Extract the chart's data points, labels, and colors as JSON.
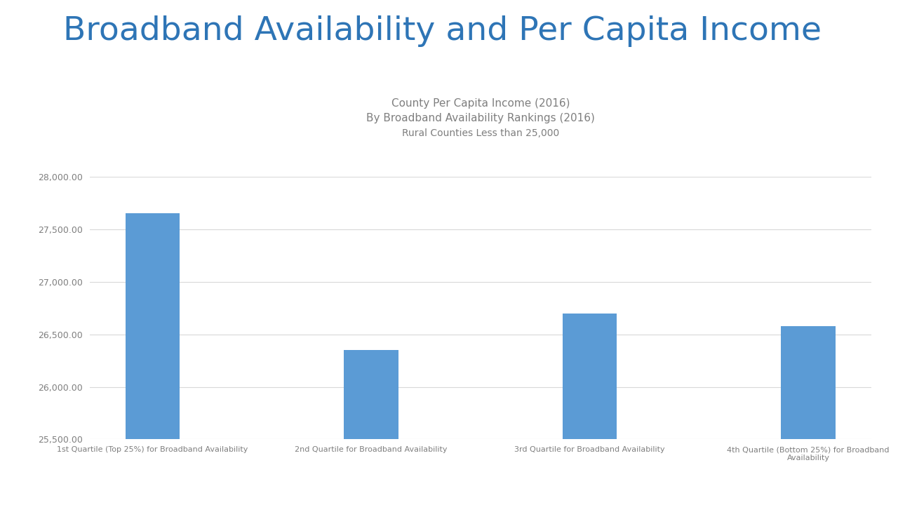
{
  "title": "Broadband Availability and Per Capita Income",
  "subtitle_line1": "County Per Capita Income (2016)",
  "subtitle_line2": "By Broadband Availability Rankings (2016)",
  "subtitle_line3": "Rural Counties Less than 25,000",
  "categories": [
    "1st Quartile (Top 25%) for Broadband Availability",
    "2nd Quartile for Broadband Availability",
    "3rd Quartile for Broadband Availability",
    "4th Quartile (Bottom 25%) for Broadband\nAvailability"
  ],
  "values": [
    27650,
    26350,
    26700,
    26575
  ],
  "bar_color": "#5b9bd5",
  "ylim": [
    25500,
    28000
  ],
  "yticks": [
    25500,
    26000,
    26500,
    27000,
    27500,
    28000
  ],
  "background_color": "#ffffff",
  "title_color": "#2e75b6",
  "subtitle_color": "#7f7f7f",
  "tick_color": "#7f7f7f",
  "grid_color": "#d9d9d9",
  "title_fontsize": 34,
  "subtitle_fontsize": 11,
  "tick_fontsize": 9,
  "xlabel_fontsize": 8
}
